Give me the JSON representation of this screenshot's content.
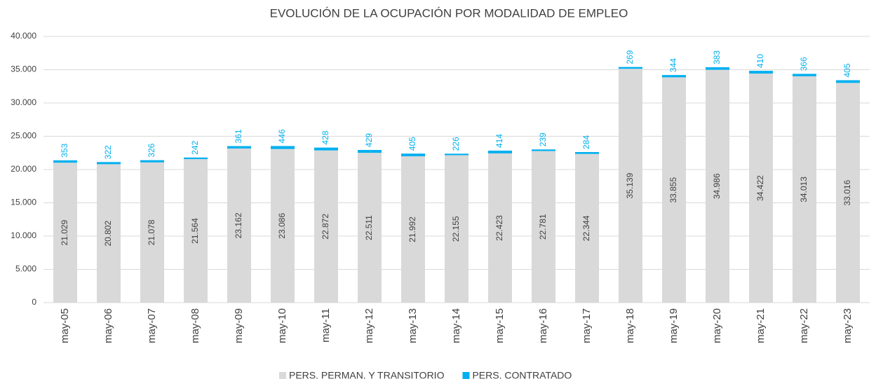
{
  "chart_data": {
    "type": "stacked_bar",
    "title": "EVOLUCIÓN DE LA OCUPACIÓN POR MODALIDAD DE EMPLEO",
    "categories": [
      "may-05",
      "may-06",
      "may-07",
      "may-08",
      "may-09",
      "may-10",
      "may-11",
      "may-12",
      "may-13",
      "may-14",
      "may-15",
      "may-16",
      "may-17",
      "may-18",
      "may-19",
      "may-20",
      "may-21",
      "may-22",
      "may-23"
    ],
    "series": [
      {
        "name": "PERS. PERMAN. Y TRANSITORIO",
        "color": "#d9d9d9",
        "values": [
          21029,
          20802,
          21078,
          21564,
          23162,
          23086,
          22872,
          22511,
          21992,
          22155,
          22423,
          22781,
          22344,
          35139,
          33855,
          34986,
          34422,
          34013,
          33016
        ],
        "value_labels": [
          "21.029",
          "20.802",
          "21.078",
          "21.564",
          "23.162",
          "23.086",
          "22.872",
          "22.511",
          "21.992",
          "22.155",
          "22.423",
          "22.781",
          "22.344",
          "35.139",
          "33.855",
          "34.986",
          "34.422",
          "34.013",
          "33.016"
        ]
      },
      {
        "name": "PERS. CONTRATADO",
        "color": "#00b0f0",
        "values": [
          353,
          322,
          326,
          242,
          361,
          446,
          428,
          429,
          405,
          226,
          414,
          239,
          284,
          269,
          344,
          383,
          410,
          366,
          405
        ]
      }
    ],
    "ylim": [
      0,
      40000
    ],
    "yticks": [
      {
        "value": 0,
        "label": "0"
      },
      {
        "value": 5000,
        "label": "5.000"
      },
      {
        "value": 10000,
        "label": "10.000"
      },
      {
        "value": 15000,
        "label": "15.000"
      },
      {
        "value": 20000,
        "label": "20.000"
      },
      {
        "value": 25000,
        "label": "25.000"
      },
      {
        "value": 30000,
        "label": "30.000"
      },
      {
        "value": 35000,
        "label": "35.000"
      },
      {
        "value": 40000,
        "label": "40.000"
      }
    ],
    "grid": true,
    "legend": "bottom"
  }
}
